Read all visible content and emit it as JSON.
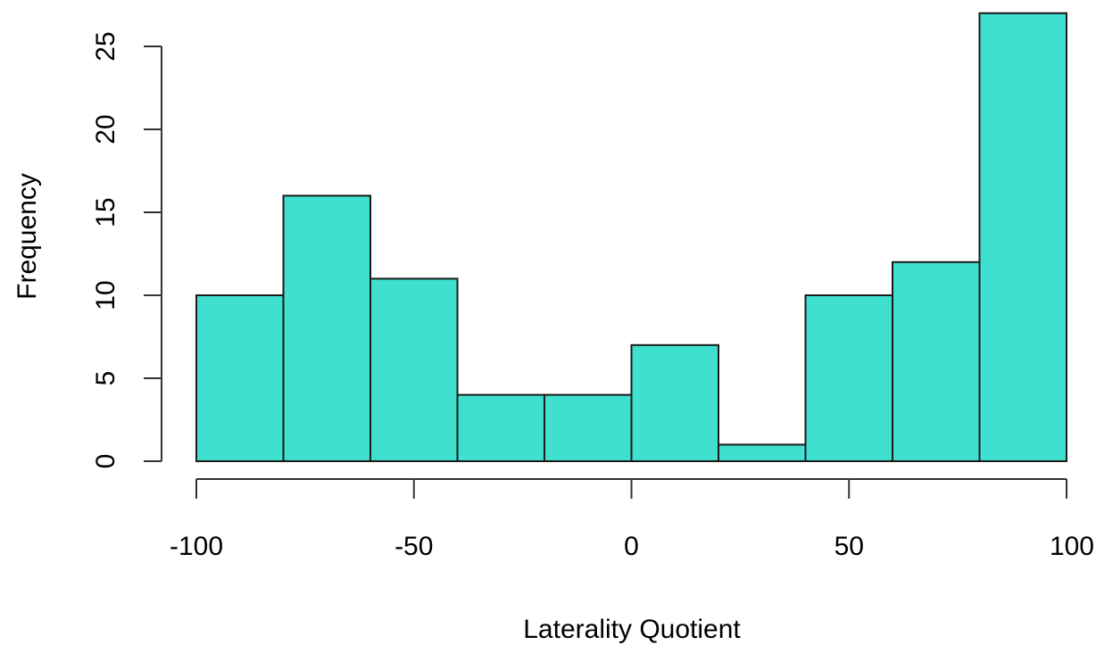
{
  "chart_data": {
    "type": "bar",
    "histogram": true,
    "bin_edges": [
      -100,
      -80,
      -60,
      -40,
      -20,
      0,
      20,
      40,
      60,
      80,
      100
    ],
    "values": [
      10,
      16,
      11,
      4,
      4,
      7,
      1,
      10,
      12,
      27
    ],
    "xlabel": "Laterality Quotient",
    "ylabel": "Frequency",
    "xlim": [
      -100,
      100
    ],
    "ylim": [
      0,
      27
    ],
    "x_ticks": [
      -100,
      -50,
      0,
      50,
      100
    ],
    "x_tick_labels": [
      "-100",
      "-50",
      "0",
      "50",
      "100"
    ],
    "y_ticks": [
      0,
      5,
      10,
      15,
      20,
      25
    ],
    "y_tick_labels": [
      "0",
      "5",
      "10",
      "15",
      "20",
      "25"
    ],
    "bar_color": "#40e0d0",
    "bar_border_color": "#1a1a1a",
    "grid": false,
    "legend": "none"
  }
}
